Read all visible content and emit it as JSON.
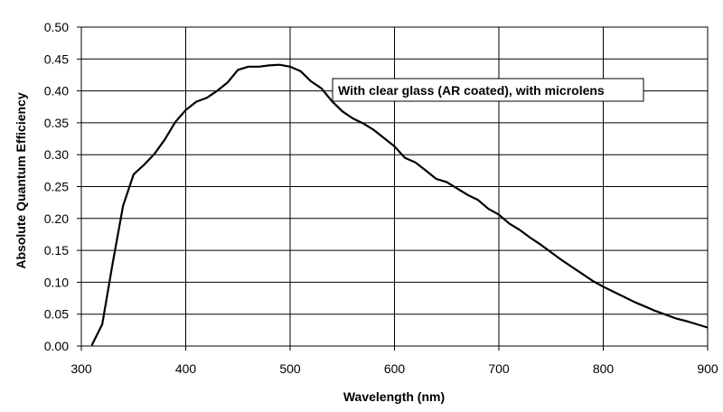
{
  "chart_data": {
    "type": "line",
    "title": "",
    "xlabel": "Wavelength (nm)",
    "ylabel": "Absolute Quantum Efficiency",
    "xlim": [
      300,
      900
    ],
    "ylim": [
      0,
      0.5
    ],
    "x_ticks": [
      "300",
      "400",
      "500",
      "600",
      "700",
      "800",
      "900"
    ],
    "y_ticks": [
      "0.00",
      "0.05",
      "0.10",
      "0.15",
      "0.20",
      "0.25",
      "0.30",
      "0.35",
      "0.40",
      "0.45",
      "0.50"
    ],
    "grid": true,
    "legend": "none",
    "annotation": "With clear glass (AR coated), with microlens",
    "line_color": "#000000",
    "series": [
      {
        "x": [
          310,
          320,
          330,
          340,
          350,
          360,
          370,
          380,
          390,
          400,
          410,
          420,
          430,
          440,
          450,
          460,
          470,
          480,
          490,
          500,
          510,
          520,
          530,
          540,
          550,
          560,
          570,
          580,
          590,
          600,
          610,
          620,
          630,
          640,
          650,
          660,
          670,
          680,
          690,
          700,
          710,
          720,
          730,
          740,
          750,
          760,
          770,
          780,
          790,
          800,
          810,
          820,
          830,
          840,
          850,
          860,
          870,
          880,
          890,
          900
        ],
        "values": [
          0.001,
          0.034,
          0.13,
          0.22,
          0.269,
          0.284,
          0.301,
          0.324,
          0.351,
          0.37,
          0.383,
          0.389,
          0.4,
          0.413,
          0.433,
          0.438,
          0.438,
          0.44,
          0.441,
          0.438,
          0.431,
          0.415,
          0.404,
          0.384,
          0.368,
          0.357,
          0.349,
          0.339,
          0.326,
          0.313,
          0.295,
          0.288,
          0.275,
          0.262,
          0.257,
          0.247,
          0.237,
          0.229,
          0.215,
          0.206,
          0.192,
          0.182,
          0.17,
          0.159,
          0.147,
          0.135,
          0.124,
          0.113,
          0.102,
          0.093,
          0.085,
          0.077,
          0.069,
          0.062,
          0.055,
          0.049,
          0.043,
          0.039,
          0.034,
          0.029
        ]
      }
    ]
  }
}
